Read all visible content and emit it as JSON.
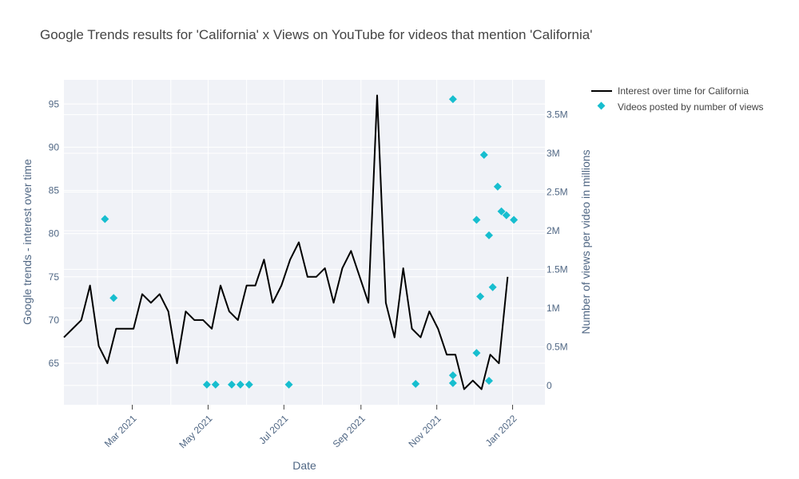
{
  "chart_data": {
    "type": "line",
    "title": "Google Trends results for 'California' x Views on YouTube for videos that mention 'California'",
    "xlabel": "Date",
    "ylabel": "Google trends - interest over time",
    "y2label": "Number of views per video in millions",
    "xlim": [
      "2021-01-05",
      "2022-01-27"
    ],
    "ylim": [
      60.2,
      97.8
    ],
    "y2lim": [
      -0.25,
      3.95
    ],
    "x_tick_labels": [
      "Mar 2021",
      "May 2021",
      "Jul 2021",
      "Sep 2021",
      "Nov 2021",
      "Jan 2022"
    ],
    "x_tick_dates": [
      "2021-03-01",
      "2021-05-01",
      "2021-07-01",
      "2021-09-01",
      "2021-11-01",
      "2022-01-01"
    ],
    "y_ticks": [
      65,
      70,
      75,
      80,
      85,
      90,
      95
    ],
    "y_tick_labels": [
      "65",
      "70",
      "75",
      "80",
      "85",
      "90",
      "95"
    ],
    "y2_ticks": [
      0,
      0.5,
      1,
      1.5,
      2,
      2.5,
      3,
      3.5
    ],
    "y2_tick_labels": [
      "0",
      "0.5M",
      "1M",
      "1.5M",
      "2M",
      "2.5M",
      "3M",
      "3.5M"
    ],
    "grid": true,
    "legend_position": "top-right",
    "colors": {
      "line": "#000000",
      "markers": "#17becf",
      "plot_bg": "#f0f2f7",
      "grid": "#ffffff"
    },
    "series": [
      {
        "name": "Interest over time for California",
        "type": "line",
        "axis": "left",
        "x": [
          "2021-01-05",
          "2021-01-12",
          "2021-01-19",
          "2021-01-26",
          "2021-02-02",
          "2021-02-09",
          "2021-02-16",
          "2021-02-23",
          "2021-03-02",
          "2021-03-09",
          "2021-03-16",
          "2021-03-23",
          "2021-03-30",
          "2021-04-06",
          "2021-04-13",
          "2021-04-20",
          "2021-04-27",
          "2021-05-04",
          "2021-05-11",
          "2021-05-18",
          "2021-05-25",
          "2021-06-01",
          "2021-06-08",
          "2021-06-15",
          "2021-06-22",
          "2021-06-29",
          "2021-07-06",
          "2021-07-13",
          "2021-07-20",
          "2021-07-27",
          "2021-08-03",
          "2021-08-10",
          "2021-08-17",
          "2021-08-24",
          "2021-08-31",
          "2021-09-07",
          "2021-09-14",
          "2021-09-21",
          "2021-09-28",
          "2021-10-05",
          "2021-10-12",
          "2021-10-19",
          "2021-10-26",
          "2021-11-02",
          "2021-11-09",
          "2021-11-16",
          "2021-11-23",
          "2021-11-30",
          "2021-12-07",
          "2021-12-14",
          "2021-12-21",
          "2021-12-28"
        ],
        "values": [
          68,
          69,
          70,
          74,
          67,
          65,
          69,
          69,
          69,
          73,
          72,
          73,
          71,
          65,
          71,
          70,
          70,
          69,
          74,
          71,
          70,
          74,
          74,
          77,
          72,
          74,
          77,
          79,
          75,
          75,
          76,
          72,
          76,
          78,
          75,
          72,
          96,
          72,
          68,
          76,
          69,
          68,
          71,
          69,
          66,
          66,
          62,
          63,
          62,
          66,
          65,
          75
        ]
      },
      {
        "name": "Videos posted by number of views",
        "type": "scatter",
        "axis": "right",
        "marker": "diamond",
        "x": [
          "2021-02-07",
          "2021-02-14",
          "2021-04-30",
          "2021-05-07",
          "2021-05-20",
          "2021-05-27",
          "2021-06-03",
          "2021-07-05",
          "2021-10-15",
          "2021-11-14",
          "2021-11-14",
          "2021-11-14",
          "2021-12-03",
          "2021-12-03",
          "2021-12-06",
          "2021-12-09",
          "2021-12-13",
          "2021-12-16",
          "2021-12-13",
          "2021-12-20",
          "2021-12-23",
          "2021-12-27",
          "2022-01-02"
        ],
        "values": [
          2.15,
          1.13,
          0.01,
          0.01,
          0.01,
          0.01,
          0.01,
          0.01,
          0.02,
          3.7,
          0.13,
          0.03,
          2.14,
          0.42,
          1.15,
          2.98,
          1.94,
          1.27,
          0.06,
          2.57,
          2.25,
          2.2,
          2.14
        ]
      }
    ]
  }
}
